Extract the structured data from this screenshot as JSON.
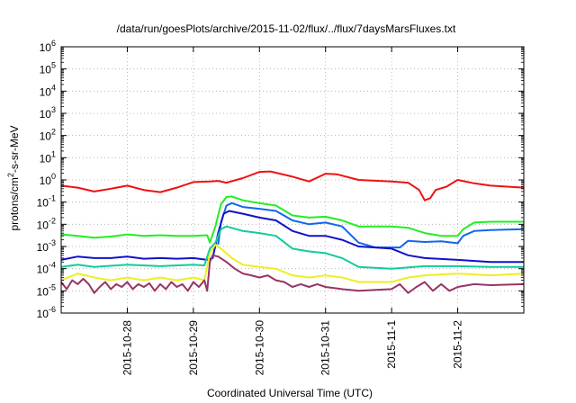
{
  "chart_data": {
    "type": "line",
    "title": "/data/run/goesPlots/archive/2015-11-02/flux/../flux/7daysMarsFluxes.txt",
    "xlabel": "Coordinated Universal Time (UTC)",
    "ylabel": "protons/cm²-s-sr-MeV",
    "ylabel_parts": {
      "pre": "protons/cm",
      "sup": "2",
      "post": "-s-sr-MeV"
    },
    "y_scale": "log",
    "ylim": [
      1e-06,
      1000000.0
    ],
    "xlim": [
      "2015-10-27T00:00",
      "2015-11-03T00:00"
    ],
    "grid": true,
    "legend": "none",
    "x_ticks": [
      {
        "x": "2015-10-28T00:00",
        "label": "2015-10-28"
      },
      {
        "x": "2015-10-29T00:00",
        "label": "2015-10-29"
      },
      {
        "x": "2015-10-30T00:00",
        "label": "2015-10-30"
      },
      {
        "x": "2015-10-31T00:00",
        "label": "2015-10-31"
      },
      {
        "x": "2015-11-01T00:00",
        "label": "2015-11-1"
      },
      {
        "x": "2015-11-02T00:00",
        "label": "2015-11-2"
      }
    ],
    "y_ticks": [
      {
        "exp": "-6"
      },
      {
        "exp": "-5"
      },
      {
        "exp": "-4"
      },
      {
        "exp": "-3"
      },
      {
        "exp": "-2"
      },
      {
        "exp": "-1"
      },
      {
        "exp": "0"
      },
      {
        "exp": "1"
      },
      {
        "exp": "2"
      },
      {
        "exp": "3"
      },
      {
        "exp": "4"
      },
      {
        "exp": "5"
      },
      {
        "exp": "6"
      }
    ],
    "series": [
      {
        "color": "#ee1111",
        "points": [
          [
            "2015-10-27T00:00",
            0.55
          ],
          [
            "2015-10-27T06:00",
            0.45
          ],
          [
            "2015-10-27T12:00",
            0.3
          ],
          [
            "2015-10-27T18:00",
            0.4
          ],
          [
            "2015-10-28T00:00",
            0.55
          ],
          [
            "2015-10-28T06:00",
            0.35
          ],
          [
            "2015-10-28T12:00",
            0.28
          ],
          [
            "2015-10-28T18:00",
            0.45
          ],
          [
            "2015-10-29T00:00",
            0.8
          ],
          [
            "2015-10-29T06:00",
            0.85
          ],
          [
            "2015-10-29T09:00",
            0.9
          ],
          [
            "2015-10-29T12:00",
            0.75
          ],
          [
            "2015-10-29T18:00",
            1.2
          ],
          [
            "2015-10-30T00:00",
            2.3
          ],
          [
            "2015-10-30T04:00",
            2.4
          ],
          [
            "2015-10-30T12:00",
            1.4
          ],
          [
            "2015-10-30T18:00",
            0.85
          ],
          [
            "2015-10-31T00:00",
            1.9
          ],
          [
            "2015-10-31T04:00",
            1.8
          ],
          [
            "2015-10-31T12:00",
            1.0
          ],
          [
            "2015-11-01T00:00",
            0.85
          ],
          [
            "2015-11-01T06:00",
            0.75
          ],
          [
            "2015-11-01T10:00",
            0.35
          ],
          [
            "2015-11-01T12:00",
            0.12
          ],
          [
            "2015-11-01T14:00",
            0.15
          ],
          [
            "2015-11-01T16:00",
            0.35
          ],
          [
            "2015-11-01T20:00",
            0.5
          ],
          [
            "2015-11-02T00:00",
            1.0
          ],
          [
            "2015-11-02T06:00",
            0.7
          ],
          [
            "2015-11-02T12:00",
            0.55
          ],
          [
            "2015-11-03T00:00",
            0.45
          ]
        ]
      },
      {
        "color": "#22ee22",
        "points": [
          [
            "2015-10-27T00:00",
            0.0035
          ],
          [
            "2015-10-27T06:00",
            0.003
          ],
          [
            "2015-10-27T12:00",
            0.0025
          ],
          [
            "2015-10-27T18:00",
            0.0028
          ],
          [
            "2015-10-28T00:00",
            0.0035
          ],
          [
            "2015-10-28T06:00",
            0.003
          ],
          [
            "2015-10-28T12:00",
            0.0032
          ],
          [
            "2015-10-28T18:00",
            0.003
          ],
          [
            "2015-10-29T00:00",
            0.003
          ],
          [
            "2015-10-29T05:00",
            0.0032
          ],
          [
            "2015-10-29T06:00",
            0.0015
          ],
          [
            "2015-10-29T08:00",
            0.008
          ],
          [
            "2015-10-29T10:00",
            0.08
          ],
          [
            "2015-10-29T12:00",
            0.17
          ],
          [
            "2015-10-29T14:00",
            0.18
          ],
          [
            "2015-10-29T18:00",
            0.12
          ],
          [
            "2015-10-30T00:00",
            0.09
          ],
          [
            "2015-10-30T06:00",
            0.07
          ],
          [
            "2015-10-30T12:00",
            0.025
          ],
          [
            "2015-10-30T18:00",
            0.02
          ],
          [
            "2015-10-31T00:00",
            0.022
          ],
          [
            "2015-10-31T06:00",
            0.015
          ],
          [
            "2015-10-31T12:00",
            0.008
          ],
          [
            "2015-11-01T00:00",
            0.008
          ],
          [
            "2015-11-01T06:00",
            0.007
          ],
          [
            "2015-11-01T12:00",
            0.004
          ],
          [
            "2015-11-01T18:00",
            0.003
          ],
          [
            "2015-11-02T00:00",
            0.003
          ],
          [
            "2015-11-02T02:00",
            0.006
          ],
          [
            "2015-11-02T06:00",
            0.012
          ],
          [
            "2015-11-02T12:00",
            0.013
          ],
          [
            "2015-11-03T00:00",
            0.013
          ]
        ]
      },
      {
        "color": "#1166ee",
        "points": [
          [
            "2015-10-29T09:00",
            0.0012
          ],
          [
            "2015-10-29T10:00",
            0.012
          ],
          [
            "2015-10-29T12:00",
            0.07
          ],
          [
            "2015-10-29T14:00",
            0.09
          ],
          [
            "2015-10-29T18:00",
            0.06
          ],
          [
            "2015-10-30T00:00",
            0.05
          ],
          [
            "2015-10-30T06:00",
            0.04
          ],
          [
            "2015-10-30T12:00",
            0.015
          ],
          [
            "2015-10-30T18:00",
            0.01
          ],
          [
            "2015-10-31T00:00",
            0.012
          ],
          [
            "2015-10-31T06:00",
            0.008
          ],
          [
            "2015-10-31T12:00",
            0.0015
          ],
          [
            "2015-10-31T18:00",
            0.0009
          ],
          [
            "2015-11-01T00:00",
            0.0009
          ],
          [
            "2015-11-01T03:00",
            0.0009
          ],
          [
            "2015-11-01T06:00",
            0.0018
          ],
          [
            "2015-11-01T12:00",
            0.0016
          ],
          [
            "2015-11-01T18:00",
            0.0017
          ],
          [
            "2015-11-02T00:00",
            0.0014
          ],
          [
            "2015-11-02T02:00",
            0.003
          ],
          [
            "2015-11-02T06:00",
            0.005
          ],
          [
            "2015-11-02T12:00",
            0.0055
          ],
          [
            "2015-11-03T00:00",
            0.006
          ]
        ]
      },
      {
        "color": "#1111cc",
        "points": [
          [
            "2015-10-27T00:00",
            0.00025
          ],
          [
            "2015-10-27T06:00",
            0.00035
          ],
          [
            "2015-10-27T12:00",
            0.0003
          ],
          [
            "2015-10-27T18:00",
            0.0003
          ],
          [
            "2015-10-28T00:00",
            0.00035
          ],
          [
            "2015-10-28T06:00",
            0.00028
          ],
          [
            "2015-10-28T12:00",
            0.0003
          ],
          [
            "2015-10-28T18:00",
            0.00028
          ],
          [
            "2015-10-29T00:00",
            0.0003
          ],
          [
            "2015-10-29T05:00",
            0.00025
          ],
          [
            "2015-10-29T07:00",
            0.0003
          ],
          [
            "2015-10-29T09:00",
            0.004
          ],
          [
            "2015-10-29T11:00",
            0.03
          ],
          [
            "2015-10-29T13:00",
            0.04
          ],
          [
            "2015-10-29T18:00",
            0.03
          ],
          [
            "2015-10-30T00:00",
            0.02
          ],
          [
            "2015-10-30T06:00",
            0.015
          ],
          [
            "2015-10-30T12:00",
            0.005
          ],
          [
            "2015-10-30T18:00",
            0.003
          ],
          [
            "2015-10-31T00:00",
            0.003
          ],
          [
            "2015-10-31T06:00",
            0.002
          ],
          [
            "2015-10-31T12:00",
            0.001
          ],
          [
            "2015-10-31T18:00",
            0.0009
          ],
          [
            "2015-11-01T00:00",
            0.0008
          ],
          [
            "2015-11-01T06:00",
            0.0004
          ],
          [
            "2015-11-01T12:00",
            0.0003
          ],
          [
            "2015-11-02T00:00",
            0.00025
          ],
          [
            "2015-11-02T12:00",
            0.0002
          ],
          [
            "2015-11-03T00:00",
            0.0002
          ]
        ]
      },
      {
        "color": "#11cc99",
        "points": [
          [
            "2015-10-27T00:00",
            0.00012
          ],
          [
            "2015-10-27T06:00",
            0.00015
          ],
          [
            "2015-10-27T12:00",
            0.00012
          ],
          [
            "2015-10-28T00:00",
            0.00015
          ],
          [
            "2015-10-28T12:00",
            0.00013
          ],
          [
            "2015-10-29T00:00",
            0.00015
          ],
          [
            "2015-10-29T04:00",
            0.00014
          ],
          [
            "2015-10-29T06:00",
            0.0008
          ],
          [
            "2015-10-29T08:00",
            0.0015
          ],
          [
            "2015-10-29T10:00",
            0.006
          ],
          [
            "2015-10-29T12:00",
            0.008
          ],
          [
            "2015-10-29T18:00",
            0.005
          ],
          [
            "2015-10-30T00:00",
            0.004
          ],
          [
            "2015-10-30T06:00",
            0.003
          ],
          [
            "2015-10-30T12:00",
            0.0008
          ],
          [
            "2015-10-30T18:00",
            0.0006
          ],
          [
            "2015-10-31T00:00",
            0.0005
          ],
          [
            "2015-10-31T06:00",
            0.0003
          ],
          [
            "2015-10-31T12:00",
            0.00012
          ],
          [
            "2015-11-01T00:00",
            0.0001
          ],
          [
            "2015-11-01T12:00",
            0.00013
          ],
          [
            "2015-11-02T00:00",
            0.00013
          ],
          [
            "2015-11-02T12:00",
            0.00012
          ],
          [
            "2015-11-03T00:00",
            0.00012
          ]
        ]
      },
      {
        "color": "#eeee22",
        "points": [
          [
            "2015-10-27T00:00",
            3e-05
          ],
          [
            "2015-10-27T06:00",
            6e-05
          ],
          [
            "2015-10-27T12:00",
            4e-05
          ],
          [
            "2015-10-27T18:00",
            3e-05
          ],
          [
            "2015-10-28T00:00",
            4e-05
          ],
          [
            "2015-10-28T06:00",
            3e-05
          ],
          [
            "2015-10-28T12:00",
            4e-05
          ],
          [
            "2015-10-28T18:00",
            3e-05
          ],
          [
            "2015-10-29T00:00",
            4e-05
          ],
          [
            "2015-10-29T04:00",
            3e-05
          ],
          [
            "2015-10-29T06:00",
            0.0005
          ],
          [
            "2015-10-29T08:00",
            0.0012
          ],
          [
            "2015-10-29T10:00",
            0.0008
          ],
          [
            "2015-10-29T14:00",
            0.0003
          ],
          [
            "2015-10-29T18:00",
            0.00015
          ],
          [
            "2015-10-30T00:00",
            0.00012
          ],
          [
            "2015-10-30T06:00",
            0.0001
          ],
          [
            "2015-10-30T12:00",
            5e-05
          ],
          [
            "2015-10-30T18:00",
            4e-05
          ],
          [
            "2015-10-31T00:00",
            5e-05
          ],
          [
            "2015-10-31T06:00",
            4e-05
          ],
          [
            "2015-10-31T12:00",
            2.5e-05
          ],
          [
            "2015-11-01T00:00",
            2.5e-05
          ],
          [
            "2015-11-01T06:00",
            4e-05
          ],
          [
            "2015-11-01T12:00",
            5e-05
          ],
          [
            "2015-11-02T00:00",
            6e-05
          ],
          [
            "2015-11-02T12:00",
            5e-05
          ],
          [
            "2015-11-03T00:00",
            6e-05
          ]
        ]
      },
      {
        "color": "#993366",
        "points": [
          [
            "2015-10-27T00:00",
            2.5e-05
          ],
          [
            "2015-10-27T02:00",
            1.2e-05
          ],
          [
            "2015-10-27T04:00",
            3e-05
          ],
          [
            "2015-10-27T06:00",
            2e-05
          ],
          [
            "2015-10-27T08:00",
            3.5e-05
          ],
          [
            "2015-10-27T10:00",
            2e-05
          ],
          [
            "2015-10-27T12:00",
            8e-06
          ],
          [
            "2015-10-27T14:00",
            1.5e-05
          ],
          [
            "2015-10-27T16:00",
            2.5e-05
          ],
          [
            "2015-10-27T18:00",
            1.2e-05
          ],
          [
            "2015-10-27T20:00",
            2e-05
          ],
          [
            "2015-10-27T22:00",
            1.5e-05
          ],
          [
            "2015-10-28T00:00",
            2.5e-05
          ],
          [
            "2015-10-28T02:00",
            1.2e-05
          ],
          [
            "2015-10-28T04:00",
            2e-05
          ],
          [
            "2015-10-28T06:00",
            1.5e-05
          ],
          [
            "2015-10-28T08:00",
            2.2e-05
          ],
          [
            "2015-10-28T10:00",
            1e-05
          ],
          [
            "2015-10-28T12:00",
            2e-05
          ],
          [
            "2015-10-28T14:00",
            1.2e-05
          ],
          [
            "2015-10-28T16:00",
            2.5e-05
          ],
          [
            "2015-10-28T18:00",
            1.5e-05
          ],
          [
            "2015-10-28T20:00",
            2e-05
          ],
          [
            "2015-10-28T22:00",
            1e-05
          ],
          [
            "2015-10-29T00:00",
            2.5e-05
          ],
          [
            "2015-10-29T02:00",
            1.5e-05
          ],
          [
            "2015-10-29T04:00",
            3e-05
          ],
          [
            "2015-10-29T05:00",
            1e-05
          ],
          [
            "2015-10-29T06:00",
            0.0002
          ],
          [
            "2015-10-29T07:00",
            0.0004
          ],
          [
            "2015-10-29T09:00",
            0.00035
          ],
          [
            "2015-10-29T12:00",
            0.0002
          ],
          [
            "2015-10-29T15:00",
            0.0001
          ],
          [
            "2015-10-29T18:00",
            6e-05
          ],
          [
            "2015-10-29T21:00",
            5e-05
          ],
          [
            "2015-10-30T00:00",
            4e-05
          ],
          [
            "2015-10-30T03:00",
            5e-05
          ],
          [
            "2015-10-30T06:00",
            3e-05
          ],
          [
            "2015-10-30T09:00",
            2.5e-05
          ],
          [
            "2015-10-30T12:00",
            1.5e-05
          ],
          [
            "2015-10-30T15:00",
            2e-05
          ],
          [
            "2015-10-30T18:00",
            1.5e-05
          ],
          [
            "2015-10-30T21:00",
            2e-05
          ],
          [
            "2015-10-31T00:00",
            1.5e-05
          ],
          [
            "2015-10-31T06:00",
            1.2e-05
          ],
          [
            "2015-10-31T12:00",
            1e-05
          ],
          [
            "2015-11-01T00:00",
            1.2e-05
          ],
          [
            "2015-11-01T03:00",
            2e-05
          ],
          [
            "2015-11-01T06:00",
            8e-06
          ],
          [
            "2015-11-01T09:00",
            1.5e-05
          ],
          [
            "2015-11-01T12:00",
            2.5e-05
          ],
          [
            "2015-11-01T15:00",
            1e-05
          ],
          [
            "2015-11-01T18:00",
            2e-05
          ],
          [
            "2015-11-01T21:00",
            1e-05
          ],
          [
            "2015-11-02T00:00",
            1.5e-05
          ],
          [
            "2015-11-02T06:00",
            2e-05
          ],
          [
            "2015-11-02T12:00",
            1.8e-05
          ],
          [
            "2015-11-03T00:00",
            2e-05
          ]
        ]
      }
    ]
  }
}
